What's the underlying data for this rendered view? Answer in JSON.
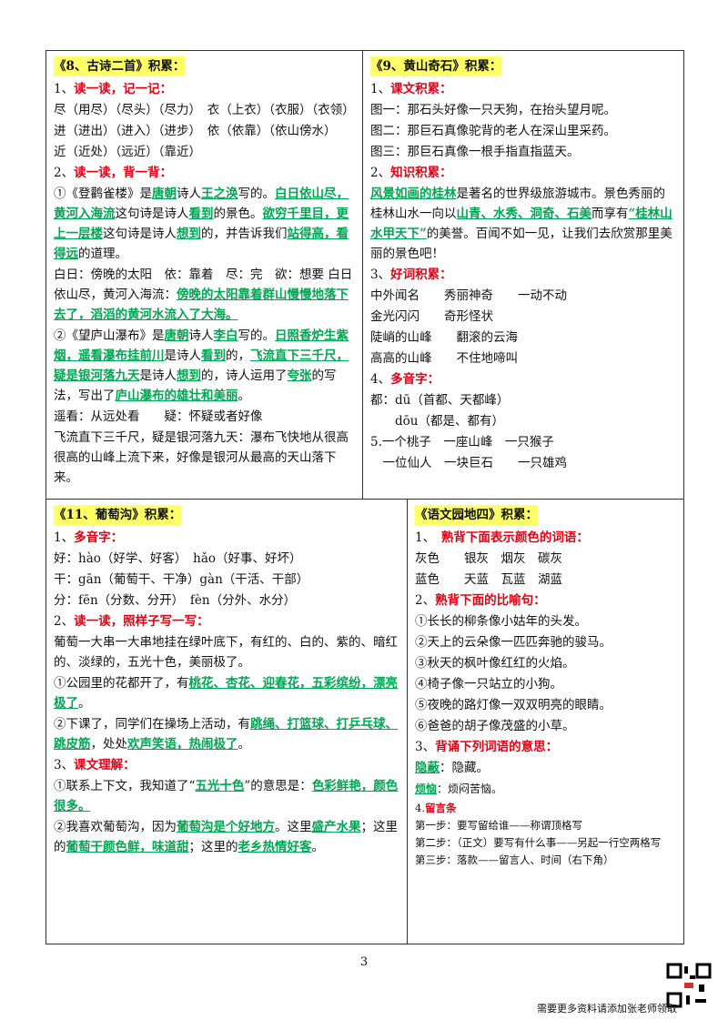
{
  "sections": [
    {
      "title": "《8、古诗二首》积累：",
      "lines": [
        [
          "1、",
          {
            "text": "读一读，记一记：",
            "emphasis": "red"
          }
        ],
        [
          "尽（用尽）（尽头）（尽力）　衣（上衣）（衣服）（衣领）"
        ],
        [
          "进（进出）（进入）（进步）　依（依靠）（依山傍水）"
        ],
        [
          "近（近处）（远近）（靠近）"
        ],
        [
          "2、",
          {
            "text": "读一读，背一背：",
            "emphasis": "red"
          }
        ],
        [
          "①《登鹳雀楼》是",
          {
            "text": "唐朝",
            "emphasis": "green"
          },
          "诗人",
          {
            "text": "王之涣",
            "emphasis": "green"
          },
          "写的。",
          {
            "text": "白日依山尽，黄河入海流",
            "emphasis": "green"
          },
          "这句诗是诗人",
          {
            "text": "看到",
            "emphasis": "green"
          },
          "的景色。",
          {
            "text": "欲穷千里目，更上一层楼",
            "emphasis": "green"
          },
          "这句诗是诗人",
          {
            "text": "想到",
            "emphasis": "green"
          },
          "的，并告诉我们",
          {
            "text": "站得高，看得远",
            "emphasis": "green"
          },
          "的道理。"
        ],
        [
          "白日：傍晚的太阳　依：靠着　尽：完　欲：想要 白日依山尽，黄河入海流：",
          {
            "text": "傍晚的太阳靠着群山慢慢地落下去了，滔滔的黄河水流入了大海。",
            "emphasis": "green"
          }
        ],
        [
          "②《望庐山瀑布》是",
          {
            "text": "唐朝",
            "emphasis": "green"
          },
          "诗人",
          {
            "text": "李白",
            "emphasis": "green"
          },
          "写的。",
          {
            "text": "日照香炉生紫烟，遥看瀑布挂前川",
            "emphasis": "green"
          },
          "是诗人",
          {
            "text": "看到",
            "emphasis": "green"
          },
          "的，",
          {
            "text": "飞流直下三千尺，疑是银河落九天",
            "emphasis": "green"
          },
          "是诗人",
          {
            "text": "想到",
            "emphasis": "green"
          },
          "的，诗人运用了",
          {
            "text": "夸张",
            "emphasis": "green"
          },
          "的写法，写出了",
          {
            "text": "庐山瀑布的雄壮和美丽",
            "emphasis": "green"
          },
          "。"
        ],
        [
          "遥看：从远处看　　疑：怀疑或者好像"
        ],
        [
          "飞流直下三千尺，疑是银河落九天：瀑布飞快地从很高很高的山峰上流下来，好像是银河从最高的天山落下来。"
        ]
      ]
    },
    {
      "title": "《9、黄山奇石》积累：",
      "lines": [
        [
          "1、",
          {
            "text": "课文积累：",
            "emphasis": "red"
          }
        ],
        [
          "图一：那石头好像一只天狗，在抬头望月呢。"
        ],
        [
          "图二：那巨石真像驼背的老人在深山里采药。"
        ],
        [
          "图三：那巨石真像一根手指直指蓝天。"
        ],
        [
          "2、",
          {
            "text": "知识积累：",
            "emphasis": "red"
          }
        ],
        [
          {
            "text": "风景如画的桂林",
            "emphasis": "green"
          },
          "是著名的世界级旅游城市。景色秀丽的桂林山水一向以",
          {
            "text": "山青、水秀、洞奇、石美",
            "emphasis": "green"
          },
          "而享有",
          {
            "text": "“桂林山水甲天下”",
            "emphasis": "green"
          },
          "的美誉。百闻不如一见，让我们去欣赏那里美丽的景色吧！"
        ],
        [
          "3、",
          {
            "text": "好词积累：",
            "emphasis": "red"
          }
        ],
        [
          "中外闻名　　秀丽神奇　　一动不动"
        ],
        [
          "金光闪闪　　奇形怪状"
        ],
        [
          "陡峭的山峰　　翻滚的云海"
        ],
        [
          "高高的山峰　　不住地啼叫"
        ],
        [
          "4、",
          {
            "text": "多音字：",
            "emphasis": "red"
          }
        ],
        [
          "都：dū（首都、天都峰）"
        ],
        [
          "　　dōu（都是、都有）"
        ],
        [
          "5.一个桃子　一座山峰　一只猴子"
        ],
        [
          "　一位仙人　一块巨石　　一只雄鸡"
        ]
      ]
    },
    {
      "title": "《11、葡萄沟》积累：",
      "lines": [
        [
          "1、",
          {
            "text": "多音字：",
            "emphasis": "red"
          }
        ],
        [
          "好：hào（好学、好客）　hǎo（好事、好坏）"
        ],
        [
          "干：gān（葡萄干、干净）gàn（干活、干部）"
        ],
        [
          "分：fēn（分数、分开）　fèn（分外、水分）"
        ],
        [
          "2、",
          {
            "text": "读一读，照样子写一写：",
            "emphasis": "red"
          }
        ],
        [
          "葡萄一大串一大串地挂在绿叶底下，有红的、白的、紫的、暗红的、淡绿的，五光十色，美丽极了。"
        ],
        [
          "①公园里的花都开了，有",
          {
            "text": "桃花、杏花、迎春花，五彩缤纷，漂亮极了",
            "emphasis": "green"
          },
          "。"
        ],
        [
          "②下课了，同学们在操场上活动，有",
          {
            "text": "跳绳、打篮球、打乒乓球、跳皮筋",
            "emphasis": "green"
          },
          "，处处",
          {
            "text": "欢声笑语，热闹极了",
            "emphasis": "green"
          },
          "。"
        ],
        [
          "3、",
          {
            "text": "课文理解：",
            "emphasis": "red"
          }
        ],
        [
          "①联系上下文，我知道了“",
          {
            "text": "五光十色",
            "emphasis": "green"
          },
          "”的意思是：",
          {
            "text": "色彩鲜艳，颜色很多。",
            "emphasis": "green"
          }
        ],
        [
          "②我喜欢葡萄沟，因为",
          {
            "text": "葡萄沟是个好地方",
            "emphasis": "green"
          },
          "。这里",
          {
            "text": "盛产水果",
            "emphasis": "green"
          },
          "；这里的",
          {
            "text": "葡萄干颜色鲜，味道甜",
            "emphasis": "green"
          },
          "；这里的",
          {
            "text": "老乡热情好客",
            "emphasis": "green"
          },
          "。"
        ]
      ]
    },
    {
      "title": "《语文园地四》积累：",
      "lines": [
        [
          "1、　",
          {
            "text": "熟背下面表示颜色的词语：",
            "emphasis": "red"
          }
        ],
        [
          "灰色　　银灰　烟灰　碳灰"
        ],
        [
          "蓝色　　天蓝　瓦蓝　湖蓝"
        ],
        [
          "2、",
          {
            "text": "熟背下面的比喻句：",
            "emphasis": "red"
          }
        ],
        [
          "①长长的柳条像小姑年的头发。"
        ],
        [
          "②天上的云朵像一匹匹奔驰的骏马。"
        ],
        [
          "③秋天的枫叶像红红的火焰。"
        ],
        [
          "④椅子像一只站立的小狗。"
        ],
        [
          "⑤夜晚的路灯像一双双明亮的眼睛。"
        ],
        [
          "⑥爸爸的胡子像茂盛的小草。"
        ],
        [
          "3、",
          {
            "text": "背诵下列词语的意思：",
            "emphasis": "red"
          }
        ],
        [
          {
            "text": "隐蔽",
            "emphasis": "green"
          },
          "：隐藏。"
        ],
        [
          {
            "text": "烦恼",
            "emphasis": "green"
          },
          "：烦闷苦恼。"
        ],
        [
          "4.",
          {
            "text": "留言条",
            "emphasis": "red"
          }
        ],
        [
          "第一步：要写留给谁——称谓顶格写"
        ],
        [
          "第二步：（正文）要写有什么事——另起一行空两格写"
        ],
        [
          "第三步：落款——留言人、时间（右下角）"
        ]
      ]
    }
  ],
  "page_number": "3",
  "footer": "需要更多资料请添加张老师领取"
}
